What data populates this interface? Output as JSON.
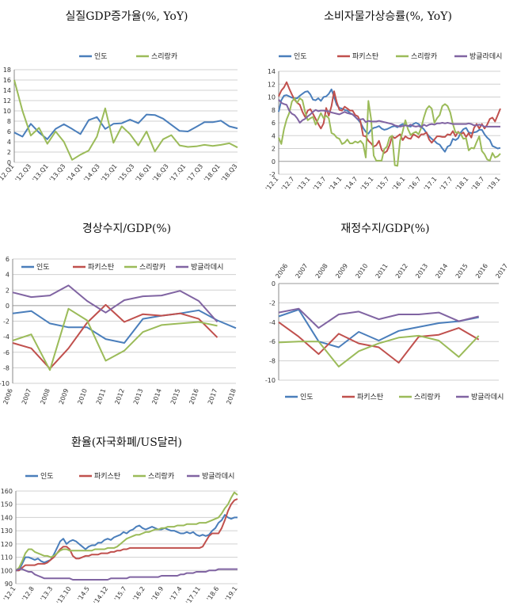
{
  "chart_data": [
    {
      "id": "gdp",
      "type": "line",
      "title": "실질GDP증가율(%,  YoY)",
      "ylim": [
        0,
        18
      ],
      "yticks": [
        0,
        2,
        4,
        6,
        8,
        10,
        12,
        14,
        16,
        18
      ],
      "xtick_labels": [
        "'12.Q1",
        "'12.Q3",
        "'13.Q1",
        "'13.Q3",
        "'14.Q1",
        "'14.Q3",
        "'15.Q1",
        "'15.Q3",
        "'16.Q1",
        "'16.Q3",
        "'17.Q1",
        "'17.Q3",
        "'18.Q1",
        "'18.Q3"
      ],
      "grid": true,
      "legend": "top",
      "series": [
        {
          "name": "인도",
          "color": "#4a7ebb",
          "values": [
            5.8,
            5.0,
            7.5,
            5.8,
            4.5,
            6.5,
            7.4,
            6.5,
            5.5,
            8.2,
            8.8,
            6.5,
            7.5,
            7.6,
            8.3,
            7.6,
            9.3,
            9.2,
            8.5,
            7.3,
            6.1,
            6.0,
            6.9,
            7.8,
            7.8,
            8.1,
            7.0,
            6.6
          ]
        },
        {
          "name": "스리랑카",
          "color": "#9bbb59",
          "values": [
            16.0,
            10.0,
            5.2,
            6.7,
            3.6,
            6.0,
            4.0,
            0.5,
            1.5,
            2.3,
            5.0,
            10.5,
            3.8,
            7.0,
            5.5,
            3.3,
            6.0,
            2.1,
            4.5,
            5.3,
            3.3,
            3.0,
            3.1,
            3.4,
            3.2,
            3.4,
            3.7,
            2.9
          ]
        }
      ]
    },
    {
      "id": "cpi",
      "type": "line",
      "title": "소비자물가상승률(%,  YoY)",
      "ylim": [
        -2,
        14
      ],
      "yticks": [
        -2,
        0,
        2,
        4,
        6,
        8,
        10,
        12,
        14
      ],
      "xtick_labels": [
        "'12.1",
        "'12.7",
        "'13.1",
        "'13.7",
        "'14.1",
        "'14.7",
        "'15.1",
        "'15.7",
        "'16.1",
        "'16.7",
        "'17.1",
        "'17.7",
        "'18.1",
        "'18.7",
        "'19.1"
      ],
      "grid": true,
      "legend": "top",
      "series": [
        {
          "name": "인도",
          "color": "#4a7ebb",
          "values": [
            7.7,
            9.5,
            10.2,
            10.3,
            10.1,
            9.9,
            9.8,
            9.8,
            10.2,
            10.5,
            10.8,
            10.9,
            10.4,
            9.6,
            9.5,
            9.8,
            9.4,
            10.0,
            10.1,
            10.5,
            11.2,
            10.0,
            8.8,
            8.3,
            8.2,
            8.0,
            7.9,
            7.5,
            7.3,
            6.9,
            6.5,
            6.0,
            5.2,
            4.6,
            4.3,
            4.9,
            5.2,
            5.3,
            5.5,
            5.1,
            4.9,
            5.0,
            5.2,
            5.4,
            5.5,
            5.3,
            5.6,
            5.8,
            5.7,
            5.5,
            5.4,
            5.8,
            6.0,
            5.8,
            5.4,
            5.0,
            4.4,
            3.9,
            3.5,
            3.2,
            2.8,
            2.6,
            2.0,
            1.5,
            2.3,
            2.5,
            3.5,
            3.3,
            3.6,
            4.5,
            5.0,
            5.2,
            4.5,
            4.4,
            4.5,
            4.6,
            4.9,
            4.9,
            4.2,
            3.7,
            3.3,
            2.4,
            2.2,
            2.0,
            2.1
          ]
        },
        {
          "name": "파키스탄",
          "color": "#c0504d",
          "values": [
            10.1,
            11.0,
            11.5,
            12.3,
            11.3,
            10.4,
            9.6,
            9.1,
            8.8,
            7.7,
            6.9,
            7.9,
            8.1,
            7.4,
            6.6,
            5.8,
            5.1,
            5.9,
            8.3,
            7.1,
            8.6,
            10.9,
            9.2,
            8.0,
            7.9,
            8.5,
            8.2,
            7.9,
            7.9,
            7.2,
            7.0,
            6.2,
            4.0,
            3.9,
            3.2,
            2.8,
            2.3,
            2.5,
            3.2,
            1.8,
            1.3,
            1.6,
            2.5,
            3.9,
            3.6,
            3.9,
            4.2,
            3.3,
            3.9,
            3.6,
            3.5,
            4.2,
            4.0,
            3.7,
            4.2,
            4.2,
            4.5,
            3.4,
            2.9,
            3.4,
            3.9,
            3.9,
            3.8,
            3.8,
            4.2,
            4.1,
            4.7,
            3.9,
            4.6,
            4.2,
            4.5,
            3.8,
            4.4,
            3.7,
            5.2,
            5.8,
            5.1,
            5.8,
            5.1,
            5.7,
            6.6,
            6.8,
            6.2,
            7.2,
            8.2
          ]
        },
        {
          "name": "스리랑카",
          "color": "#9bbb59",
          "values": [
            3.7,
            2.7,
            5.0,
            6.5,
            7.5,
            9.3,
            9.8,
            9.1,
            9.8,
            9.5,
            7.7,
            6.4,
            6.7,
            6.9,
            5.7,
            6.6,
            7.5,
            6.7,
            7.1,
            6.7,
            4.4,
            4.2,
            3.7,
            3.5,
            2.7,
            2.9,
            3.4,
            2.8,
            2.8,
            3.1,
            2.9,
            3.2,
            2.7,
            0.6,
            9.4,
            6.6,
            0.9,
            0.1,
            0.1,
            0.1,
            1.9,
            2.3,
            3.7,
            4.0,
            -0.6,
            -0.7,
            3.2,
            4.7,
            6.4,
            5.0,
            4.1,
            4.4,
            4.6,
            4.2,
            5.2,
            6.8,
            8.1,
            8.6,
            8.2,
            6.0,
            6.7,
            7.2,
            8.6,
            8.9,
            8.6,
            7.6,
            5.8,
            4.5,
            4.5,
            4.2,
            3.5,
            3.6,
            1.7,
            2.1,
            2.0,
            3.0,
            3.9,
            1.6,
            1.1,
            0.3,
            0.1,
            1.3,
            0.6,
            0.8,
            1.2
          ]
        },
        {
          "name": "방글라데시",
          "color": "#8064a2",
          "values": [
            9.6,
            9.1,
            8.9,
            8.8,
            7.9,
            7.4,
            7.2,
            6.7,
            6.0,
            6.4,
            6.6,
            7.0,
            7.3,
            7.7,
            8.0,
            7.8,
            7.9,
            7.9,
            7.8,
            7.8,
            7.6,
            7.5,
            7.4,
            7.3,
            7.5,
            7.7,
            7.5,
            7.4,
            7.3,
            6.9,
            6.5,
            6.5,
            6.6,
            6.1,
            6.3,
            6.2,
            6.2,
            6.2,
            6.3,
            6.2,
            6.1,
            6.0,
            5.9,
            5.8,
            5.6,
            5.5,
            5.4,
            5.5,
            5.6,
            5.5,
            5.7,
            5.5,
            5.4,
            5.5,
            5.3,
            5.7,
            5.5,
            5.7,
            5.8,
            5.7,
            5.9,
            5.9,
            6.0,
            5.9,
            6.0,
            5.9,
            5.8,
            5.8,
            5.8,
            5.8,
            5.8,
            5.8,
            5.9,
            5.8,
            5.6,
            5.6,
            5.7,
            5.6,
            5.4,
            5.4,
            5.4,
            5.4,
            5.4,
            5.4,
            5.4
          ]
        }
      ]
    },
    {
      "id": "ca",
      "type": "line",
      "title": "경상수지/GDP(%)",
      "ylim": [
        -10,
        6
      ],
      "yticks": [
        -10,
        -8,
        -6,
        -4,
        -2,
        0,
        2,
        4,
        6
      ],
      "x": [
        "2006",
        "2007",
        "2008",
        "2009",
        "2010",
        "2011",
        "2012",
        "2013",
        "2014",
        "2015",
        "2016",
        "2017",
        "2018"
      ],
      "grid": true,
      "legend": "top",
      "series": [
        {
          "name": "인도",
          "color": "#4a7ebb",
          "values": [
            -1.0,
            -0.7,
            -2.3,
            -2.8,
            -2.8,
            -4.3,
            -4.8,
            -1.7,
            -1.3,
            -1.0,
            -0.6,
            -1.9,
            -2.9
          ]
        },
        {
          "name": "파키스탄",
          "color": "#c0504d",
          "values": [
            -4.8,
            -5.5,
            -8.1,
            -5.5,
            -2.2,
            0.1,
            -2.1,
            -1.1,
            -1.3,
            -1.0,
            -1.7,
            -4.1,
            null
          ]
        },
        {
          "name": "스리랑카",
          "color": "#9bbb59",
          "values": [
            -4.5,
            -3.7,
            -8.3,
            -0.4,
            -1.9,
            -7.1,
            -5.8,
            -3.4,
            -2.5,
            -2.3,
            -2.1,
            -2.6,
            null
          ]
        },
        {
          "name": "방글라데시",
          "color": "#8064a2",
          "values": [
            1.7,
            1.1,
            1.3,
            2.6,
            0.6,
            -0.9,
            0.7,
            1.2,
            1.3,
            1.9,
            0.6,
            -2.1,
            null
          ]
        }
      ]
    },
    {
      "id": "fiscal",
      "type": "line",
      "title": "재정수지/GDP(%)",
      "ylim": [
        -10,
        0
      ],
      "yticks": [
        -10,
        -8,
        -6,
        -4,
        -2,
        0
      ],
      "x": [
        "2006",
        "2007",
        "2008",
        "2009",
        "2010",
        "2011",
        "2012",
        "2013",
        "2014",
        "2015",
        "2016",
        "2017"
      ],
      "grid": true,
      "legend": "bottom",
      "series": [
        {
          "name": "인도",
          "color": "#4a7ebb",
          "values": [
            -3.4,
            -2.7,
            -6.0,
            -6.6,
            -5.0,
            -5.9,
            -4.9,
            -4.5,
            -4.1,
            -3.9,
            -3.5,
            null
          ]
        },
        {
          "name": "파키스탄",
          "color": "#c0504d",
          "values": [
            -4.0,
            -5.5,
            -7.3,
            -5.2,
            -6.2,
            -6.6,
            -8.2,
            -5.5,
            -5.3,
            -4.6,
            -5.8,
            null
          ]
        },
        {
          "name": "스리랑카",
          "color": "#9bbb59",
          "values": [
            -6.1,
            -6.0,
            -6.0,
            -8.6,
            -7.0,
            -6.2,
            -5.6,
            -5.4,
            -5.9,
            -7.6,
            -5.4,
            null
          ]
        },
        {
          "name": "방글라데시",
          "color": "#8064a2",
          "values": [
            -3.0,
            -2.6,
            -4.6,
            -3.2,
            -2.9,
            -3.7,
            -3.2,
            -3.2,
            -3.0,
            -3.9,
            -3.4,
            null
          ]
        }
      ]
    },
    {
      "id": "fx",
      "type": "line",
      "title": "환율(자국화폐/US달러)",
      "ylim": [
        90,
        160
      ],
      "yticks": [
        90,
        100,
        110,
        120,
        130,
        140,
        150,
        160
      ],
      "xtick_labels": [
        "'12.1",
        "'12.8",
        "'13.3",
        "'13.10",
        "'14.5",
        "'14.12",
        "'15.7",
        "'16.2",
        "'16.9",
        "'17.4",
        "'17.11",
        "'18.6",
        "'19.1"
      ],
      "grid": true,
      "legend": "top",
      "series": [
        {
          "name": "인도",
          "color": "#4a7ebb",
          "values": [
            100,
            100,
            105,
            110,
            110,
            109,
            108,
            109,
            107,
            106,
            107,
            108,
            112,
            117,
            122,
            124,
            120,
            122,
            123,
            122,
            120,
            118,
            116,
            118,
            119,
            119,
            121,
            121,
            123,
            124,
            123,
            125,
            126,
            127,
            129,
            128,
            130,
            131,
            133,
            134,
            132,
            131,
            132,
            133,
            132,
            131,
            131,
            132,
            131,
            130,
            130,
            129,
            128,
            128,
            129,
            128,
            129,
            127,
            126,
            127,
            126,
            127,
            130,
            132,
            136,
            138,
            142,
            140,
            139,
            140,
            140
          ]
        },
        {
          "name": "파키스탄",
          "color": "#c0504d",
          "values": [
            100,
            100,
            102,
            104,
            104,
            104,
            104,
            105,
            105,
            105,
            106,
            108,
            110,
            113,
            116,
            118,
            118,
            116,
            111,
            109,
            109,
            110,
            111,
            111,
            112,
            112,
            112,
            113,
            113,
            113,
            114,
            114,
            115,
            115,
            116,
            116,
            117,
            117,
            117,
            117,
            117,
            117,
            117,
            117,
            117,
            117,
            117,
            117,
            117,
            117,
            117,
            117,
            117,
            117,
            117,
            117,
            117,
            117,
            117,
            118,
            122,
            126,
            128,
            128,
            128,
            132,
            138,
            145,
            150,
            153,
            154
          ]
        },
        {
          "name": "스리랑카",
          "color": "#9bbb59",
          "values": [
            100,
            102,
            107,
            113,
            116,
            116,
            114,
            113,
            112,
            111,
            111,
            110,
            111,
            113,
            115,
            116,
            116,
            115,
            115,
            115,
            115,
            115,
            115,
            115,
            115,
            116,
            116,
            116,
            116,
            117,
            117,
            117,
            118,
            120,
            122,
            124,
            125,
            126,
            127,
            127,
            128,
            129,
            129,
            130,
            131,
            131,
            132,
            132,
            133,
            133,
            133,
            134,
            134,
            134,
            135,
            135,
            135,
            135,
            136,
            136,
            136,
            137,
            138,
            139,
            140,
            143,
            147,
            150,
            155,
            159,
            157
          ]
        },
        {
          "name": "방글라데시",
          "color": "#8064a2",
          "values": [
            100,
            101,
            101,
            100,
            99,
            99,
            97,
            96,
            95,
            94,
            94,
            94,
            94,
            94,
            94,
            94,
            94,
            94,
            93,
            93,
            93,
            93,
            93,
            93,
            93,
            93,
            93,
            93,
            93,
            93,
            94,
            94,
            94,
            94,
            94,
            94,
            95,
            95,
            95,
            95,
            95,
            95,
            95,
            95,
            95,
            95,
            96,
            96,
            96,
            96,
            96,
            96,
            97,
            97,
            98,
            98,
            98,
            99,
            99,
            99,
            99,
            100,
            100,
            100,
            101,
            101,
            101,
            101,
            101,
            101,
            101
          ]
        }
      ]
    }
  ]
}
